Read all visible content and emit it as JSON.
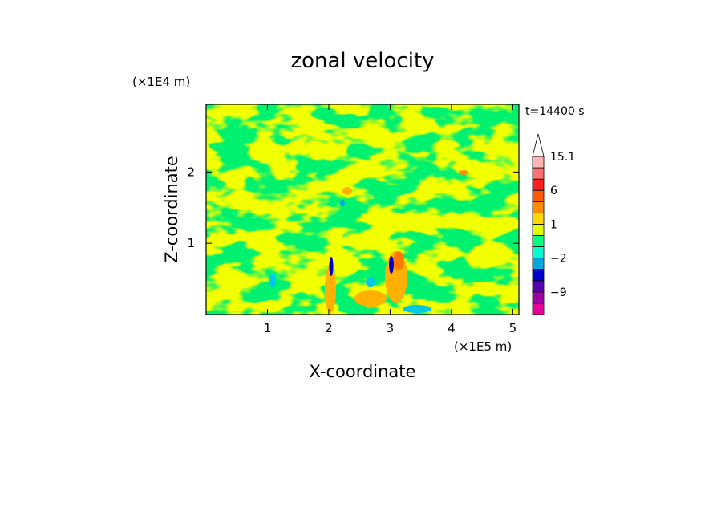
{
  "chart_data": {
    "type": "heatmap",
    "title": "zonal velocity",
    "xlabel": "X-coordinate",
    "ylabel": "Z-coordinate",
    "x_unit": "(×1E5 m)",
    "y_unit": "(×1E4 m)",
    "time_label": "t=14400 s",
    "xlim": [
      0,
      5.1
    ],
    "ylim": [
      0,
      2.95
    ],
    "x_ticks": [
      1,
      2,
      3,
      4,
      5
    ],
    "y_ticks": [
      1,
      2
    ],
    "colorbar": {
      "levels": [
        -12,
        -9,
        -6,
        -4,
        -2,
        -1,
        0,
        1,
        2,
        4,
        6,
        9,
        12,
        15.1
      ],
      "colors": [
        "#e8009a",
        "#a000a8",
        "#5a00b0",
        "#0000c8",
        "#00a8e0",
        "#00ffd0",
        "#00ff80",
        "#e0ff00",
        "#ffd800",
        "#ff8c00",
        "#ff5a00",
        "#ff1e1e",
        "#ff7070",
        "#ffb4b4"
      ],
      "labels": [
        {
          "value": -9,
          "text": "−9"
        },
        {
          "value": -2,
          "text": "−2"
        },
        {
          "value": 1,
          "text": "1"
        },
        {
          "value": 6,
          "text": "6"
        },
        {
          "value": 15.1,
          "text": "15.1"
        }
      ],
      "extend_top": true
    }
  }
}
